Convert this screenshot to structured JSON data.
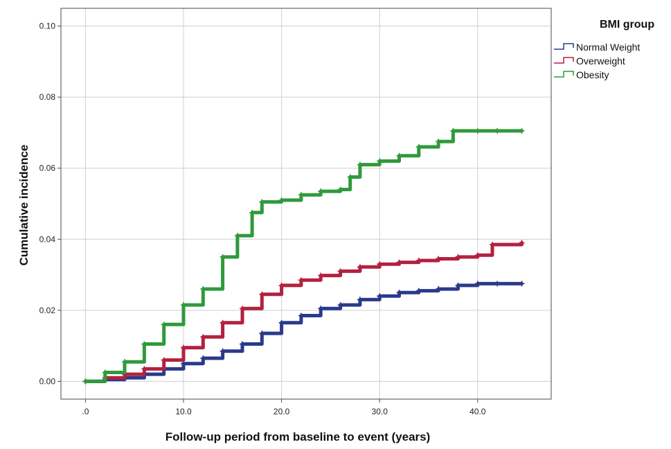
{
  "chart_data": {
    "type": "line",
    "title": "",
    "xlabel": "Follow-up period from baseline to event (years)",
    "ylabel": "Cumulative incidence",
    "xlim": [
      -2.5,
      47.5
    ],
    "ylim": [
      -0.005,
      0.105
    ],
    "x_ticks": [
      0,
      10,
      20,
      30,
      40
    ],
    "x_tick_labels": [
      ".0",
      "10.0",
      "20.0",
      "30.0",
      "40.0"
    ],
    "y_ticks": [
      0,
      0.02,
      0.04,
      0.06,
      0.08,
      0.1
    ],
    "y_tick_labels": [
      "0.00",
      "0.02",
      "0.04",
      "0.06",
      "0.08",
      "0.10"
    ],
    "grid": true,
    "legend": {
      "title": "BMI group",
      "position": "top-right"
    },
    "series": [
      {
        "name": "Normal Weight",
        "color": "#2b3a8c",
        "x": [
          0,
          2,
          4,
          6,
          8,
          10,
          12,
          14,
          16,
          18,
          20,
          22,
          24,
          26,
          28,
          30,
          32,
          34,
          36,
          38,
          40,
          42,
          44.5
        ],
        "y": [
          0,
          0.0005,
          0.001,
          0.002,
          0.0035,
          0.005,
          0.0065,
          0.0085,
          0.0105,
          0.0135,
          0.0165,
          0.0185,
          0.0205,
          0.0215,
          0.023,
          0.024,
          0.025,
          0.0255,
          0.026,
          0.027,
          0.0275,
          0.0275,
          0.0275
        ]
      },
      {
        "name": "Overweight",
        "color": "#b3213f",
        "x": [
          0,
          2,
          4,
          6,
          8,
          10,
          12,
          14,
          16,
          18,
          20,
          22,
          24,
          26,
          28,
          30,
          32,
          34,
          36,
          38,
          40,
          41.5,
          44.5
        ],
        "y": [
          0,
          0.001,
          0.002,
          0.0035,
          0.006,
          0.0095,
          0.0125,
          0.0165,
          0.0205,
          0.0245,
          0.027,
          0.0285,
          0.0298,
          0.031,
          0.0322,
          0.033,
          0.0335,
          0.034,
          0.0345,
          0.035,
          0.0355,
          0.0385,
          0.039
        ]
      },
      {
        "name": "Obesity",
        "color": "#2f9a3c",
        "x": [
          0,
          2,
          4,
          6,
          8,
          10,
          12,
          14,
          15.5,
          17,
          18,
          20,
          22,
          24,
          26,
          27,
          28,
          30,
          32,
          34,
          36,
          37.5,
          40,
          42,
          44.5
        ],
        "y": [
          0,
          0.0025,
          0.0055,
          0.0105,
          0.016,
          0.0215,
          0.026,
          0.035,
          0.041,
          0.0475,
          0.0505,
          0.051,
          0.0525,
          0.0535,
          0.054,
          0.0575,
          0.061,
          0.062,
          0.0635,
          0.066,
          0.0675,
          0.0705,
          0.0705,
          0.0705,
          0.0705
        ]
      }
    ]
  }
}
